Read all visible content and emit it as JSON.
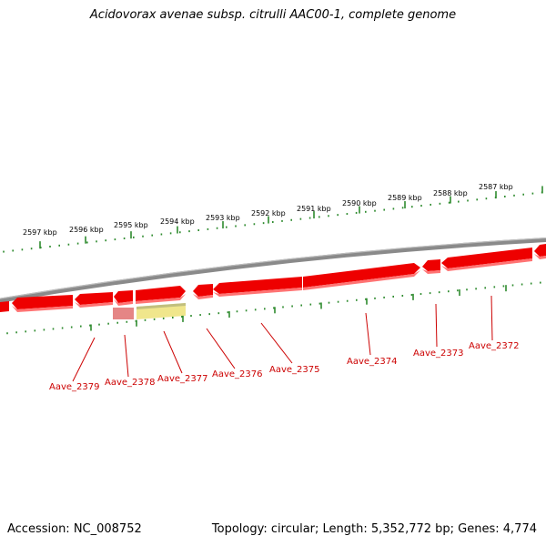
{
  "title": "Acidovorax avenae subsp. citrulli AAC00-1, complete genome",
  "footer": {
    "accession": "Accession: NC_008752",
    "summary": "Topology: circular; Length: 5,352,772 bp; Genes: 4,774"
  },
  "colors": {
    "gene": "#ee0000",
    "gene_light": "#ff7373",
    "misc_feature": "#f0e68c",
    "misc_red": "#e07070",
    "tick": "#2e8b2e",
    "backbone": "#8a8a8a",
    "label": "#cc0000"
  },
  "scale": {
    "labels": [
      "2597 kbp",
      "2596 kbp",
      "2595 kbp",
      "2594 kbp",
      "2593 kbp",
      "2592 kbp",
      "2591 kbp",
      "2590 kbp",
      "2589 kbp",
      "2588 kbp",
      "2587 kbp"
    ]
  },
  "genes": [
    {
      "label": "Aave_2379"
    },
    {
      "label": "Aave_2378"
    },
    {
      "label": "Aave_2377"
    },
    {
      "label": "Aave_2376"
    },
    {
      "label": "Aave_2375"
    },
    {
      "label": "Aave_2374"
    },
    {
      "label": "Aave_2373"
    },
    {
      "label": "Aave_2372"
    }
  ]
}
